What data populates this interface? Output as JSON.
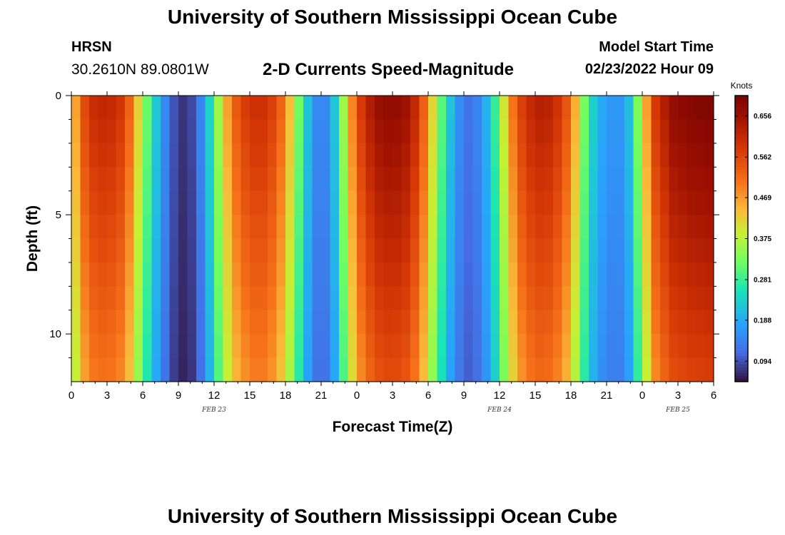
{
  "header": {
    "title": "University of Southern Mississippi Ocean Cube",
    "station": "HRSN",
    "coordinates": "30.2610N  89.0801W",
    "subtitle": "2-D Currents Speed-Magnitude",
    "model_start_label": "Model Start Time",
    "model_start_value": "02/23/2022 Hour 09"
  },
  "footer": {
    "title": "University of Southern Mississippi Ocean Cube"
  },
  "chart_data": {
    "type": "heatmap",
    "title": "2-D Currents Speed-Magnitude",
    "xlabel": "Forecast Time(Z)",
    "ylabel": "Depth (ft)",
    "x_range_hours": [
      0,
      54
    ],
    "x_ticks": [
      "0",
      "3",
      "6",
      "9",
      "12",
      "15",
      "18",
      "21",
      "0",
      "3",
      "6",
      "9",
      "12",
      "15",
      "18",
      "21",
      "0",
      "3",
      "6"
    ],
    "date_labels": [
      {
        "label": "FEB 23",
        "hour": 12
      },
      {
        "label": "FEB 24",
        "hour": 36
      },
      {
        "label": "FEB 25",
        "hour": 51
      }
    ],
    "y_range_ft": [
      0,
      12
    ],
    "y_ticks": [
      "0",
      "5",
      "10"
    ],
    "colorbar": {
      "label": "Knots",
      "min": 0.047,
      "max": 0.703,
      "ticks": [
        "0.656",
        "0.562",
        "0.469",
        "0.375",
        "0.281",
        "0.188",
        "0.094"
      ]
    },
    "depth_profile": {
      "surface_factor": 1.0,
      "bottom_factor": 0.82
    },
    "time_series_speed_knots": [
      {
        "hour": 0.0,
        "speed": 0.36
      },
      {
        "hour": 0.5,
        "speed": 0.5
      },
      {
        "hour": 1.5,
        "speed": 0.6
      },
      {
        "hour": 3.0,
        "speed": 0.62
      },
      {
        "hour": 4.5,
        "speed": 0.58
      },
      {
        "hour": 5.5,
        "speed": 0.44
      },
      {
        "hour": 6.5,
        "speed": 0.3
      },
      {
        "hour": 7.5,
        "speed": 0.18
      },
      {
        "hour": 8.5,
        "speed": 0.1
      },
      {
        "hour": 9.5,
        "speed": 0.07
      },
      {
        "hour": 10.5,
        "speed": 0.1
      },
      {
        "hour": 11.5,
        "speed": 0.22
      },
      {
        "hour": 12.5,
        "speed": 0.38
      },
      {
        "hour": 13.5,
        "speed": 0.52
      },
      {
        "hour": 15.0,
        "speed": 0.6
      },
      {
        "hour": 16.5,
        "speed": 0.6
      },
      {
        "hour": 18.0,
        "speed": 0.5
      },
      {
        "hour": 19.0,
        "speed": 0.34
      },
      {
        "hour": 20.0,
        "speed": 0.2
      },
      {
        "hour": 21.0,
        "speed": 0.12
      },
      {
        "hour": 22.0,
        "speed": 0.2
      },
      {
        "hour": 23.0,
        "speed": 0.38
      },
      {
        "hour": 24.0,
        "speed": 0.56
      },
      {
        "hour": 25.5,
        "speed": 0.66
      },
      {
        "hour": 27.0,
        "speed": 0.68
      },
      {
        "hour": 28.5,
        "speed": 0.65
      },
      {
        "hour": 29.5,
        "speed": 0.55
      },
      {
        "hour": 30.5,
        "speed": 0.4
      },
      {
        "hour": 31.5,
        "speed": 0.25
      },
      {
        "hour": 32.5,
        "speed": 0.16
      },
      {
        "hour": 33.5,
        "speed": 0.12
      },
      {
        "hour": 34.5,
        "speed": 0.16
      },
      {
        "hour": 35.5,
        "speed": 0.26
      },
      {
        "hour": 36.5,
        "speed": 0.42
      },
      {
        "hour": 37.5,
        "speed": 0.56
      },
      {
        "hour": 39.0,
        "speed": 0.63
      },
      {
        "hour": 40.5,
        "speed": 0.62
      },
      {
        "hour": 42.0,
        "speed": 0.52
      },
      {
        "hour": 43.0,
        "speed": 0.34
      },
      {
        "hour": 44.0,
        "speed": 0.22
      },
      {
        "hour": 45.0,
        "speed": 0.17
      },
      {
        "hour": 46.0,
        "speed": 0.16
      },
      {
        "hour": 47.0,
        "speed": 0.22
      },
      {
        "hour": 48.0,
        "speed": 0.4
      },
      {
        "hour": 49.0,
        "speed": 0.58
      },
      {
        "hour": 50.5,
        "speed": 0.67
      },
      {
        "hour": 52.0,
        "speed": 0.69
      },
      {
        "hour": 54.0,
        "speed": 0.7
      }
    ]
  }
}
